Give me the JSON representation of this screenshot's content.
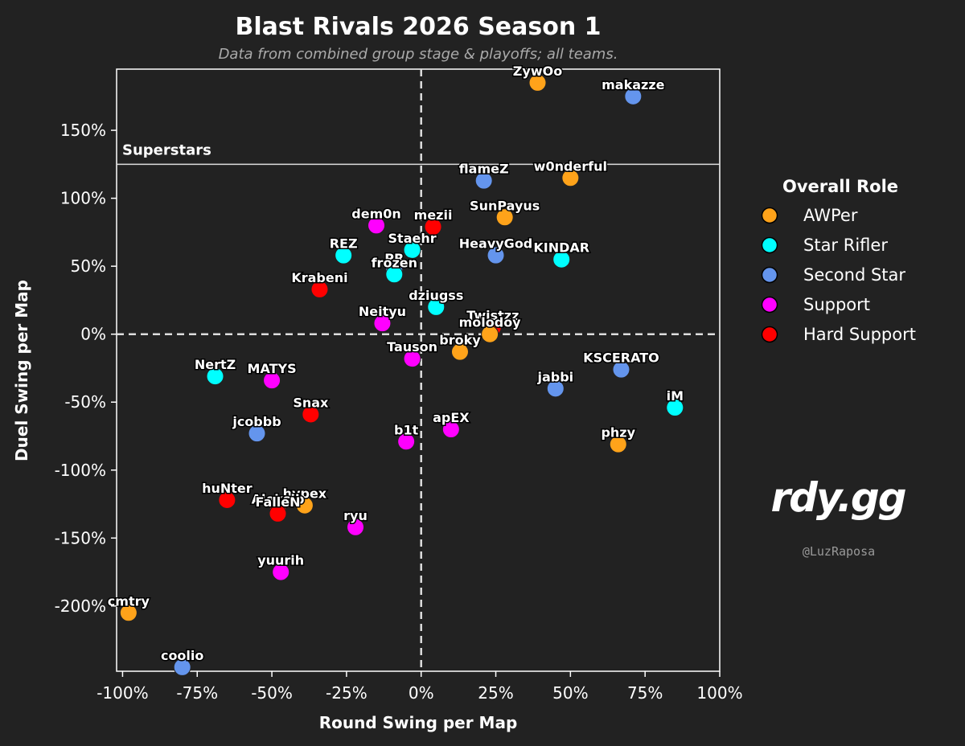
{
  "chart_data": {
    "type": "scatter",
    "title": "Blast Rivals 2026 Season 1",
    "subtitle": "Data from combined group stage & playoffs; all teams.",
    "xlabel": "Round Swing per Map",
    "ylabel": "Duel Swing per Map",
    "xlim": [
      -1.02,
      1.0
    ],
    "ylim": [
      -2.48,
      1.95
    ],
    "xticks": [
      -1.0,
      -0.75,
      -0.5,
      -0.25,
      0.0,
      0.25,
      0.5,
      0.75,
      1.0
    ],
    "xtick_labels": [
      "-100%",
      "-75%",
      "-50%",
      "-25%",
      "0%",
      "25%",
      "50%",
      "75%",
      "100%"
    ],
    "yticks": [
      1.5,
      1.0,
      0.5,
      0.0,
      -0.5,
      -1.0,
      -1.5,
      -2.0
    ],
    "ytick_labels": [
      "150%",
      "100%",
      "50%",
      "0%",
      "-50%",
      "-100%",
      "-150%",
      "-200%"
    ],
    "grid": false,
    "reference_lines": {
      "x": 0.0,
      "y": 0.0,
      "style": "dashed"
    },
    "region": {
      "label": "Superstars",
      "y_threshold": 1.25
    },
    "legend": {
      "title": "Overall Role",
      "placement": "right",
      "entries": [
        {
          "name": "AWPer",
          "color": "#ffa31a"
        },
        {
          "name": "Star Rifler",
          "color": "#00ffff"
        },
        {
          "name": "Second Star",
          "color": "#6495ed"
        },
        {
          "name": "Support",
          "color": "#ff00ff"
        },
        {
          "name": "Hard Support",
          "color": "#ff0000"
        }
      ]
    },
    "points": [
      {
        "name": "ZywOo",
        "x": 0.39,
        "y": 1.85,
        "role": "AWPer"
      },
      {
        "name": "makazze",
        "x": 0.71,
        "y": 1.75,
        "role": "Second Star"
      },
      {
        "name": "flameZ",
        "x": 0.21,
        "y": 1.13,
        "role": "Second Star"
      },
      {
        "name": "w0nderful",
        "x": 0.5,
        "y": 1.15,
        "role": "AWPer"
      },
      {
        "name": "SunPayus",
        "x": 0.28,
        "y": 0.86,
        "role": "AWPer"
      },
      {
        "name": "dem0n",
        "x": -0.15,
        "y": 0.8,
        "role": "Support"
      },
      {
        "name": "mezii",
        "x": 0.04,
        "y": 0.79,
        "role": "Hard Support"
      },
      {
        "name": "Staehr",
        "x": -0.03,
        "y": 0.62,
        "role": "Star Rifler"
      },
      {
        "name": "REZ",
        "x": -0.26,
        "y": 0.58,
        "role": "Star Rifler"
      },
      {
        "name": "HeavyGod",
        "x": 0.25,
        "y": 0.58,
        "role": "Second Star"
      },
      {
        "name": "KINDAR",
        "x": 0.47,
        "y": 0.55,
        "role": "Star Rifler"
      },
      {
        "name": "PR",
        "x": -0.09,
        "y": 0.47,
        "role": "Second Star"
      },
      {
        "name": "frozen",
        "x": -0.09,
        "y": 0.44,
        "role": "Star Rifler"
      },
      {
        "name": "Krabeni",
        "x": -0.34,
        "y": 0.33,
        "role": "Hard Support"
      },
      {
        "name": "dziugss",
        "x": 0.05,
        "y": 0.2,
        "role": "Star Rifler"
      },
      {
        "name": "Twistzz",
        "x": 0.24,
        "y": 0.05,
        "role": "Hard Support"
      },
      {
        "name": "Neityu",
        "x": -0.13,
        "y": 0.08,
        "role": "Support"
      },
      {
        "name": "molodoy",
        "x": 0.23,
        "y": 0.0,
        "role": "AWPer"
      },
      {
        "name": "broky",
        "x": 0.13,
        "y": -0.13,
        "role": "AWPer"
      },
      {
        "name": "Tauson",
        "x": -0.03,
        "y": -0.18,
        "role": "Support"
      },
      {
        "name": "KSCERATO",
        "x": 0.67,
        "y": -0.26,
        "role": "Second Star"
      },
      {
        "name": "NertZ",
        "x": -0.69,
        "y": -0.31,
        "role": "Star Rifler"
      },
      {
        "name": "MATYS",
        "x": -0.5,
        "y": -0.34,
        "role": "Support"
      },
      {
        "name": "jabbi",
        "x": 0.45,
        "y": -0.4,
        "role": "Second Star"
      },
      {
        "name": "iM",
        "x": 0.85,
        "y": -0.54,
        "role": "Star Rifler"
      },
      {
        "name": "Snax",
        "x": -0.37,
        "y": -0.59,
        "role": "Hard Support"
      },
      {
        "name": "apEX",
        "x": 0.1,
        "y": -0.7,
        "role": "Support"
      },
      {
        "name": "jcobbb",
        "x": -0.55,
        "y": -0.73,
        "role": "Second Star"
      },
      {
        "name": "b1t",
        "x": -0.05,
        "y": -0.79,
        "role": "Support"
      },
      {
        "name": "phzy",
        "x": 0.66,
        "y": -0.81,
        "role": "AWPer"
      },
      {
        "name": "huNter",
        "x": -0.65,
        "y": -1.22,
        "role": "Hard Support"
      },
      {
        "name": "hypex",
        "x": -0.39,
        "y": -1.26,
        "role": "AWPer"
      },
      {
        "name": "Aleksib",
        "x": -0.48,
        "y": -1.3,
        "role": "Hard Support"
      },
      {
        "name": "FalleN",
        "x": -0.48,
        "y": -1.32,
        "role": "Hard Support"
      },
      {
        "name": "ryu",
        "x": -0.22,
        "y": -1.42,
        "role": "Support"
      },
      {
        "name": "yuurih",
        "x": -0.47,
        "y": -1.75,
        "role": "Support"
      },
      {
        "name": "cmtry",
        "x": -0.98,
        "y": -2.05,
        "role": "AWPer"
      },
      {
        "name": "coolio",
        "x": -0.8,
        "y": -2.45,
        "role": "Second Star"
      }
    ]
  },
  "branding": {
    "logo": "rdy.gg",
    "handle": "@LuzRaposa"
  }
}
